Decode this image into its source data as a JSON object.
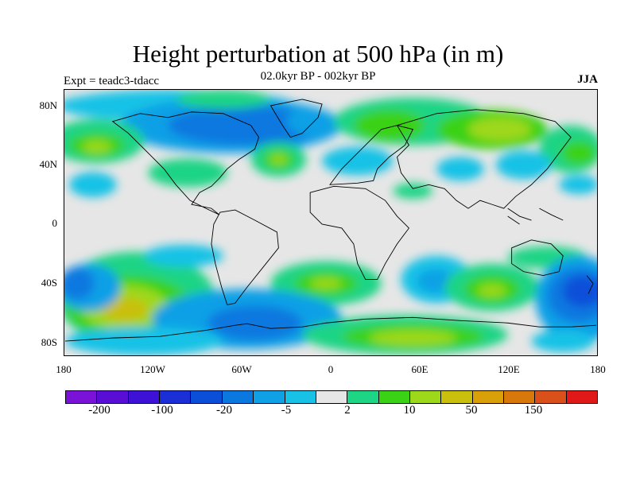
{
  "title": "Height perturbation at 500 hPa (in m)",
  "subtitle": "02.0kyr BP - 002kyr BP",
  "expt_label": "Expt = teadc3-tdacc",
  "season": "JJA",
  "map": {
    "lon_ticks": [
      "180",
      "120W",
      "60W",
      "0",
      "60E",
      "120E",
      "180"
    ],
    "lat_ticks": [
      "80N",
      "40N",
      "0",
      "40S",
      "80S"
    ],
    "ocean_land_color": "#e6e6e6",
    "coastline_color": "#000000"
  },
  "colorbar": {
    "colors": [
      "#7a12d8",
      "#5a0dd4",
      "#3e12d6",
      "#1a2fd6",
      "#0b4fd9",
      "#0b78e0",
      "#10a0e6",
      "#18c2e6",
      "#e6e6e6",
      "#1ed485",
      "#3ad214",
      "#9ed81a",
      "#c9c00e",
      "#d9a00a",
      "#d9780a",
      "#d9501a",
      "#e01818"
    ],
    "labels": [
      "-200",
      "-100",
      "-20",
      "-5",
      "2",
      "10",
      "50",
      "150"
    ]
  }
}
